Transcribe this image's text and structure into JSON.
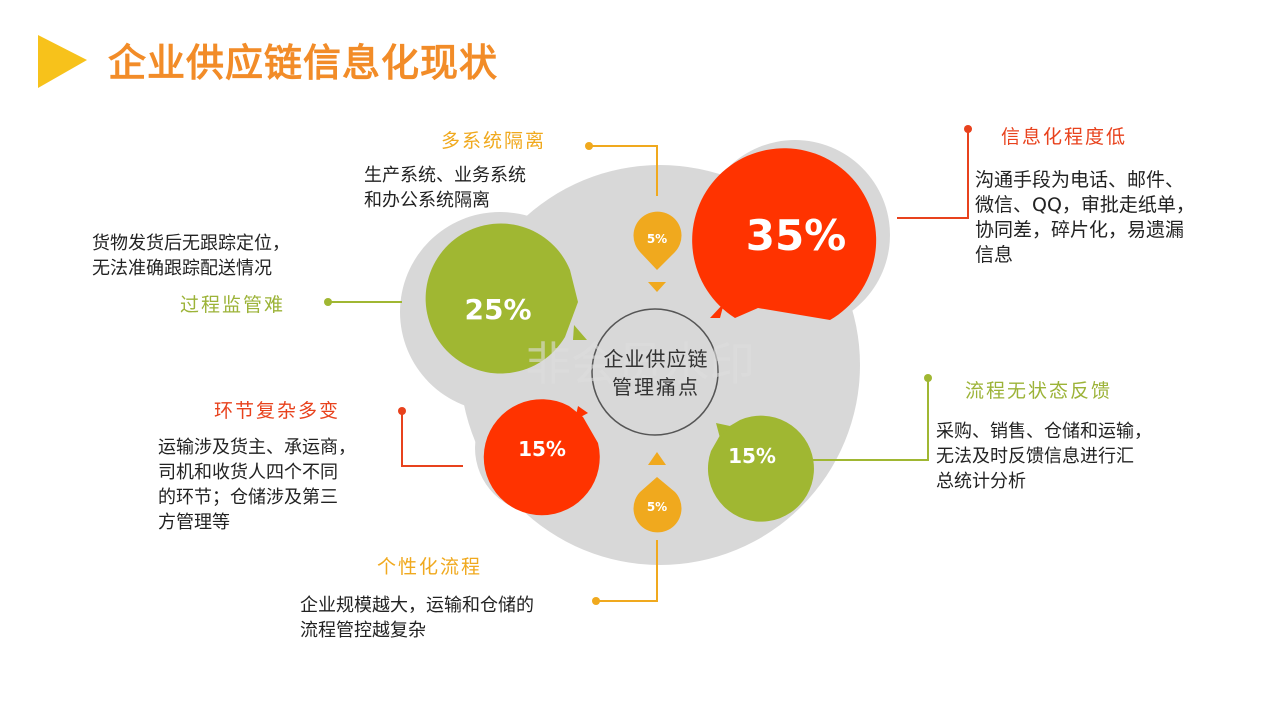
{
  "title": "企业供应链信息化现状",
  "center": {
    "line1": "企业供应链",
    "line2": "管理痛点"
  },
  "watermark": "非会员水印",
  "colors": {
    "title": "#f28c28",
    "yellow": "#f0a91e",
    "red": "#ff3300",
    "green": "#a0b732",
    "gray": "#d8d8d8"
  },
  "segments": [
    {
      "id": "multi-system",
      "percent": "5%",
      "label": "多系统隔离",
      "desc": [
        "生产系统、业务系统",
        "和办公系统隔离"
      ]
    },
    {
      "id": "info-low",
      "percent": "35%",
      "label": "信息化程度低",
      "desc": [
        "沟通手段为电话、邮件、",
        "微信、QQ，审批走纸单，",
        "协同差，碎片化，易遗漏",
        "信息"
      ]
    },
    {
      "id": "process-monitor",
      "percent": "25%",
      "label": "过程监管难",
      "desc": [
        "货物发货后无跟踪定位，",
        "无法准确跟踪配送情况"
      ]
    },
    {
      "id": "complex-links",
      "percent": "15%",
      "label": "环节复杂多变",
      "desc": [
        "运输涉及货主、承运商，",
        "司机和收货人四个不同",
        "的环节；仓储涉及第三",
        "方管理等"
      ]
    },
    {
      "id": "no-feedback",
      "percent": "15%",
      "label": "流程无状态反馈",
      "desc": [
        "采购、销售、仓储和运输，",
        "无法及时反馈信息进行汇",
        "总统计分析"
      ]
    },
    {
      "id": "personalized",
      "percent": "5%",
      "label": "个性化流程",
      "desc": [
        "企业规模越大，运输和仓储的",
        "流程管控越复杂"
      ]
    }
  ]
}
